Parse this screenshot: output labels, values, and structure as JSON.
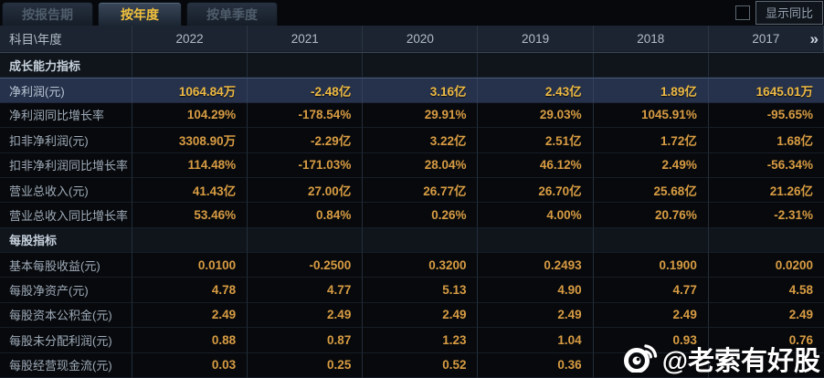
{
  "tabs": [
    {
      "label": "按报告期",
      "active": false
    },
    {
      "label": "按年度",
      "active": true
    },
    {
      "label": "按单季度",
      "active": false
    }
  ],
  "controls": {
    "show_yoy_label": "显示同比",
    "checkbox_checked": false
  },
  "table": {
    "corner_label": "科目\\年度",
    "years": [
      "2022",
      "2021",
      "2020",
      "2019",
      "2018",
      "2017"
    ],
    "more_icon": "»",
    "rows": [
      {
        "type": "section",
        "label": "成长能力指标"
      },
      {
        "type": "data",
        "label": "净利润(元)",
        "highlight": true,
        "values": [
          "1064.84万",
          "-2.48亿",
          "3.16亿",
          "2.43亿",
          "1.89亿",
          "1645.01万"
        ]
      },
      {
        "type": "data",
        "label": "净利润同比增长率",
        "values": [
          "104.29%",
          "-178.54%",
          "29.91%",
          "29.03%",
          "1045.91%",
          "-95.65%"
        ]
      },
      {
        "type": "data",
        "label": "扣非净利润(元)",
        "values": [
          "3308.90万",
          "-2.29亿",
          "3.22亿",
          "2.51亿",
          "1.72亿",
          "1.68亿"
        ]
      },
      {
        "type": "data",
        "label": "扣非净利润同比增长率",
        "values": [
          "114.48%",
          "-171.03%",
          "28.04%",
          "46.12%",
          "2.49%",
          "-56.34%"
        ]
      },
      {
        "type": "data",
        "label": "营业总收入(元)",
        "values": [
          "41.43亿",
          "27.00亿",
          "26.77亿",
          "26.70亿",
          "25.68亿",
          "21.26亿"
        ]
      },
      {
        "type": "data",
        "label": "营业总收入同比增长率",
        "values": [
          "53.46%",
          "0.84%",
          "0.26%",
          "4.00%",
          "20.76%",
          "-2.31%"
        ]
      },
      {
        "type": "section",
        "label": "每股指标"
      },
      {
        "type": "data",
        "label": "基本每股收益(元)",
        "values": [
          "0.0100",
          "-0.2500",
          "0.3200",
          "0.2493",
          "0.1900",
          "0.0200"
        ]
      },
      {
        "type": "data",
        "label": "每股净资产(元)",
        "values": [
          "4.78",
          "4.77",
          "5.13",
          "4.90",
          "4.77",
          "4.58"
        ]
      },
      {
        "type": "data",
        "label": "每股资本公积金(元)",
        "values": [
          "2.49",
          "2.49",
          "2.49",
          "2.49",
          "2.49",
          "2.49"
        ]
      },
      {
        "type": "data",
        "label": "每股未分配利润(元)",
        "values": [
          "0.88",
          "0.87",
          "1.23",
          "1.04",
          "0.93",
          "0.76"
        ]
      },
      {
        "type": "data",
        "label": "每股经营现金流(元)",
        "values": [
          "0.03",
          "0.25",
          "0.52",
          "0.36",
          "",
          ""
        ]
      }
    ]
  },
  "watermark": {
    "text": "@老索有好股",
    "icon": "weibo-logo"
  },
  "colors": {
    "value_gold": "#d89c43",
    "highlight_gold": "#eeba45",
    "active_tab_gold": "#f2c13d",
    "highlight_row_bg": "#26324b",
    "header_bg": "#1b2430",
    "watermark": "#ffffff"
  }
}
